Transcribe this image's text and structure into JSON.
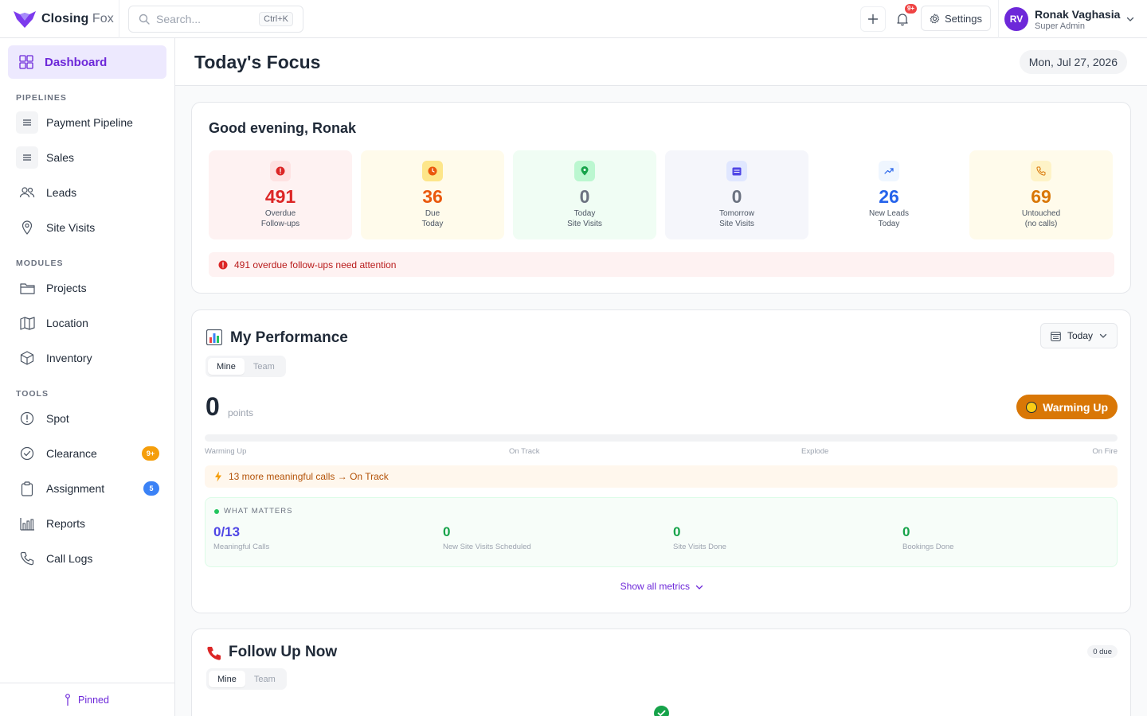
{
  "app": {
    "name_bold": "Closing",
    "name_light": " Fox"
  },
  "search": {
    "placeholder": "Search...",
    "shortcut": "Ctrl+K"
  },
  "header": {
    "notifications_badge": "9+",
    "settings_label": "Settings",
    "user": {
      "initials": "RV",
      "name": "Ronak Vaghasia",
      "role": "Super Admin"
    }
  },
  "sidebar": {
    "dashboard_label": "Dashboard",
    "sections": {
      "pipelines": "PIPELINES",
      "modules": "MODULES",
      "tools": "TOOLS"
    },
    "items": {
      "payment_pipeline": "Payment Pipeline",
      "sales": "Sales",
      "leads": "Leads",
      "site_visits": "Site Visits",
      "projects": "Projects",
      "location": "Location",
      "inventory": "Inventory",
      "spot": "Spot",
      "clearance": "Clearance",
      "assignment": "Assignment",
      "reports": "Reports",
      "call_logs": "Call Logs"
    },
    "badges": {
      "clearance": "9+",
      "assignment": "5"
    },
    "pinned_label": "Pinned"
  },
  "main": {
    "title": "Today's Focus",
    "date": "Mon, Jul 27, 2026"
  },
  "focus": {
    "greeting": "Good evening, Ronak",
    "stats": [
      {
        "value": "491",
        "line1": "Overdue",
        "line2": "Follow-ups"
      },
      {
        "value": "36",
        "line1": "Due",
        "line2": "Today"
      },
      {
        "value": "0",
        "line1": "Today",
        "line2": "Site Visits"
      },
      {
        "value": "0",
        "line1": "Tomorrow",
        "line2": "Site Visits"
      },
      {
        "value": "26",
        "line1": "New Leads",
        "line2": "Today"
      },
      {
        "value": "69",
        "line1": "Untouched",
        "line2": "(no calls)"
      }
    ],
    "alert": "491 overdue follow-ups need attention"
  },
  "performance": {
    "title": "My Performance",
    "tabs": [
      "Mine",
      "Team"
    ],
    "period": "Today",
    "points_value": "0",
    "points_label": "points",
    "status": "Warming Up",
    "progress_fraction": 0,
    "tiers": [
      "Warming Up",
      "On Track",
      "Explode",
      "On Fire"
    ],
    "hint": "13 more meaningful calls → On Track",
    "what_matters_title": "WHAT MATTERS",
    "metrics": [
      {
        "value": "0/13",
        "label": "Meaningful Calls"
      },
      {
        "value": "0",
        "label": "New Site Visits Scheduled"
      },
      {
        "value": "0",
        "label": "Site Visits Done"
      },
      {
        "value": "0",
        "label": "Bookings Done"
      }
    ],
    "show_all": "Show all metrics"
  },
  "follow_up": {
    "title": "Follow Up Now",
    "due": "0 due",
    "tabs": [
      "Mine",
      "Team"
    ]
  },
  "colors": {
    "accent": "#6d28d9",
    "overdue": "#dc2626",
    "due": "#ea580c",
    "site_visits": "#6b7280",
    "new_leads": "#2563eb",
    "untouched": "#d97706",
    "warming": "#d97706",
    "success": "#16a34a"
  }
}
